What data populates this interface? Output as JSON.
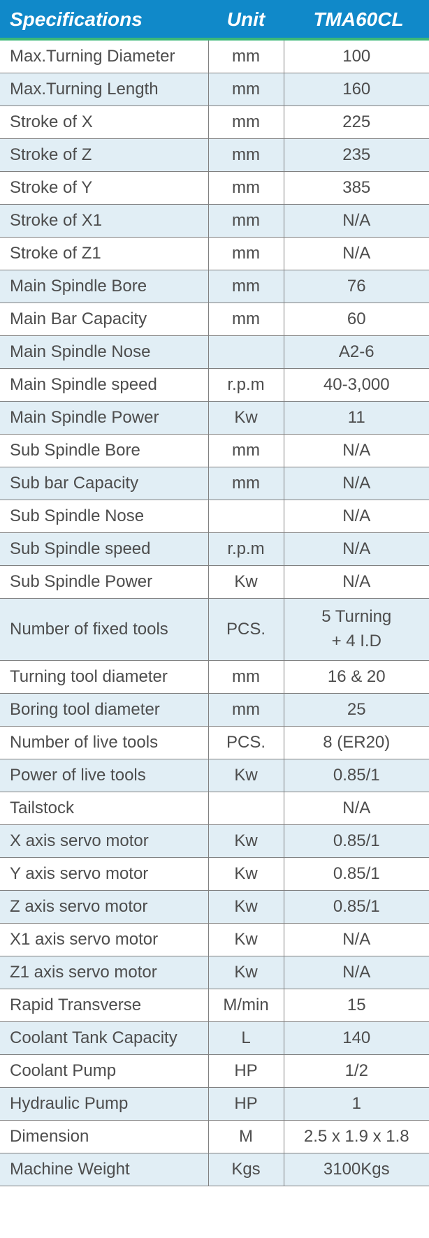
{
  "table": {
    "header_bg": "#1089c9",
    "header_underline": "#3cb878",
    "row_alt_bg": "#e1eef5",
    "text_color": "#4d4d4d",
    "border_color": "#808080",
    "header_font_size_pt": 21,
    "body_font_size_pt": 18,
    "columns": {
      "spec": "Specifications",
      "unit": "Unit",
      "val": "TMA60CL"
    },
    "rows": [
      {
        "spec": "Max.Turning Diameter",
        "unit": "mm",
        "val": "100",
        "alt": false
      },
      {
        "spec": "Max.Turning Length",
        "unit": "mm",
        "val": "160",
        "alt": true
      },
      {
        "spec": "Stroke of X",
        "unit": "mm",
        "val": "225",
        "alt": false
      },
      {
        "spec": "Stroke of Z",
        "unit": "mm",
        "val": "235",
        "alt": true
      },
      {
        "spec": "Stroke of Y",
        "unit": "mm",
        "val": "385",
        "alt": false
      },
      {
        "spec": "Stroke of X1",
        "unit": "mm",
        "val": "N/A",
        "alt": true
      },
      {
        "spec": "Stroke of Z1",
        "unit": "mm",
        "val": "N/A",
        "alt": false
      },
      {
        "spec": "Main Spindle Bore",
        "unit": "mm",
        "val": "76",
        "alt": true
      },
      {
        "spec": "Main Bar Capacity",
        "unit": "mm",
        "val": "60",
        "alt": false
      },
      {
        "spec": "Main Spindle Nose",
        "unit": "",
        "val": "A2-6",
        "alt": true
      },
      {
        "spec": "Main Spindle speed",
        "unit": "r.p.m",
        "val": "40-3,000",
        "alt": false
      },
      {
        "spec": "Main Spindle Power",
        "unit": "Kw",
        "val": "11",
        "alt": true
      },
      {
        "spec": "Sub Spindle Bore",
        "unit": "mm",
        "val": "N/A",
        "alt": false
      },
      {
        "spec": "Sub bar Capacity",
        "unit": "mm",
        "val": "N/A",
        "alt": true
      },
      {
        "spec": "Sub Spindle Nose",
        "unit": "",
        "val": "N/A",
        "alt": false
      },
      {
        "spec": "Sub Spindle speed",
        "unit": "r.p.m",
        "val": "N/A",
        "alt": true
      },
      {
        "spec": "Sub Spindle Power",
        "unit": "Kw",
        "val": "N/A",
        "alt": false
      },
      {
        "spec": "Number of fixed tools",
        "unit": "PCS.",
        "val": "5 Turning\n+ 4  I.D",
        "alt": true,
        "tall": true
      },
      {
        "spec": "Turning tool diameter",
        "unit": "mm",
        "val": "16 & 20",
        "alt": false
      },
      {
        "spec": "Boring tool diameter",
        "unit": "mm",
        "val": "25",
        "alt": true
      },
      {
        "spec": "Number of live tools",
        "unit": "PCS.",
        "val": "8 (ER20)",
        "alt": false
      },
      {
        "spec": "Power of live tools",
        "unit": "Kw",
        "val": "0.85/1",
        "alt": true
      },
      {
        "spec": "Tailstock",
        "unit": "",
        "val": "N/A",
        "alt": false
      },
      {
        "spec": "X axis servo motor",
        "unit": "Kw",
        "val": "0.85/1",
        "alt": true
      },
      {
        "spec": "Y axis servo motor",
        "unit": "Kw",
        "val": "0.85/1",
        "alt": false
      },
      {
        "spec": "Z axis servo motor",
        "unit": "Kw",
        "val": "0.85/1",
        "alt": true
      },
      {
        "spec": "X1 axis servo motor",
        "unit": "Kw",
        "val": "N/A",
        "alt": false
      },
      {
        "spec": "Z1 axis servo motor",
        "unit": "Kw",
        "val": "N/A",
        "alt": true
      },
      {
        "spec": "Rapid Transverse",
        "unit": "M/min",
        "val": "15",
        "alt": false
      },
      {
        "spec": "Coolant Tank Capacity",
        "unit": "L",
        "val": "140",
        "alt": true
      },
      {
        "spec": "Coolant Pump",
        "unit": "HP",
        "val": "1/2",
        "alt": false
      },
      {
        "spec": "Hydraulic Pump",
        "unit": "HP",
        "val": "1",
        "alt": true
      },
      {
        "spec": "Dimension",
        "unit": "M",
        "val": "2.5 x 1.9 x 1.8",
        "alt": false
      },
      {
        "spec": "Machine Weight",
        "unit": "Kgs",
        "val": "3100Kgs",
        "alt": true
      }
    ]
  }
}
